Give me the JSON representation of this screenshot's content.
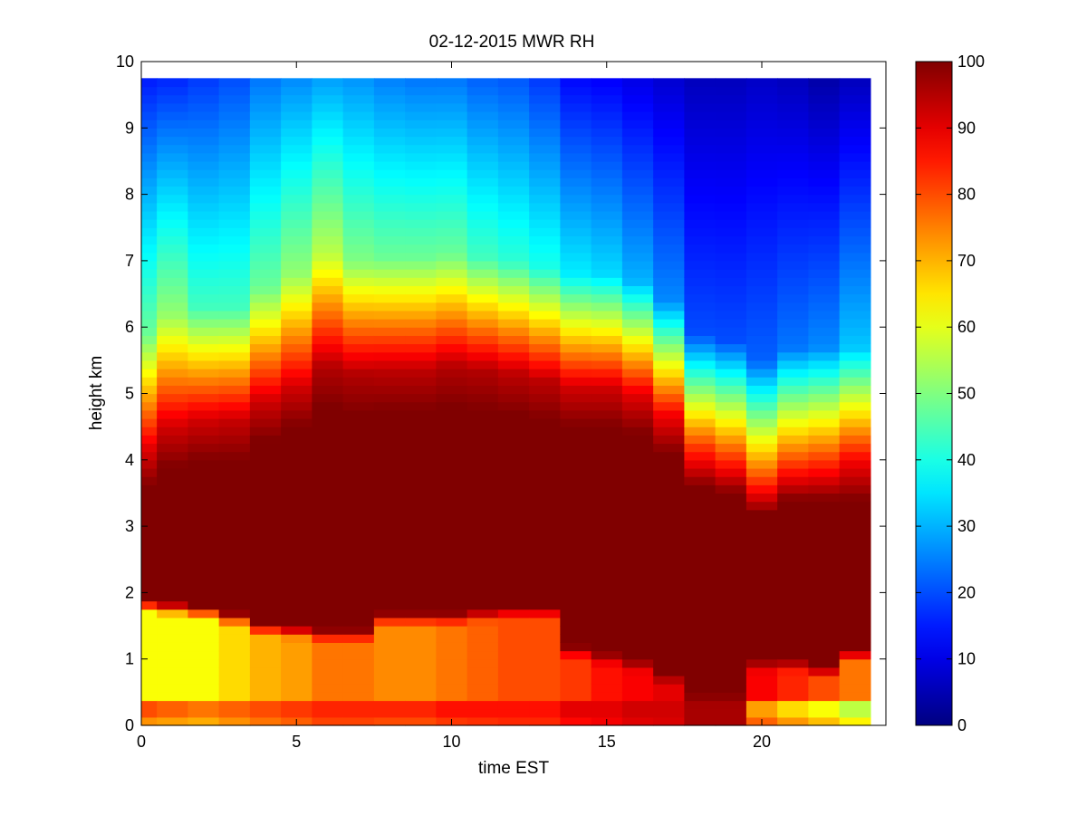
{
  "chart_data": {
    "type": "heatmap",
    "title": "02-12-2015 MWR RH",
    "xlabel": "time EST",
    "ylabel": "height km",
    "xlim": [
      0,
      24
    ],
    "ylim": [
      0,
      10
    ],
    "x_ticks": [
      0,
      5,
      10,
      15,
      20
    ],
    "y_ticks": [
      0,
      1,
      2,
      3,
      4,
      5,
      6,
      7,
      8,
      9,
      10
    ],
    "x_tick_labels": [
      "0",
      "5",
      "10",
      "15",
      "20"
    ],
    "y_tick_labels": [
      "0",
      "1",
      "2",
      "3",
      "4",
      "5",
      "6",
      "7",
      "8",
      "9",
      "10"
    ],
    "data_extent": {
      "x": [
        0,
        23.5
      ],
      "y": [
        0,
        9.75
      ]
    },
    "colormap": "jet",
    "colorbar": {
      "range": [
        0,
        100
      ],
      "ticks": [
        0,
        10,
        20,
        30,
        40,
        50,
        60,
        70,
        80,
        90,
        100
      ],
      "tick_labels": [
        "0",
        "10",
        "20",
        "30",
        "40",
        "50",
        "60",
        "70",
        "80",
        "90",
        "100"
      ]
    },
    "grid": false,
    "columns": [
      {
        "time_start": 0.0,
        "time_end": 0.5,
        "top_rh": 15,
        "upper_rh": 48,
        "mid_rh": 90,
        "sat_low": 3.6,
        "sat_high": 1.9,
        "low_rh": 62,
        "surface_rh": 80
      },
      {
        "time_start": 0.5,
        "time_end": 1.5,
        "top_rh": 16,
        "upper_rh": 52,
        "mid_rh": 92,
        "sat_low": 3.9,
        "sat_high": 1.85,
        "low_rh": 62,
        "surface_rh": 78
      },
      {
        "time_start": 1.5,
        "time_end": 2.5,
        "top_rh": 18,
        "upper_rh": 44,
        "mid_rh": 92,
        "sat_low": 4.0,
        "sat_high": 1.8,
        "low_rh": 62,
        "surface_rh": 76
      },
      {
        "time_start": 2.5,
        "time_end": 3.5,
        "top_rh": 20,
        "upper_rh": 44,
        "mid_rh": 93,
        "sat_low": 4.0,
        "sat_high": 1.7,
        "low_rh": 66,
        "surface_rh": 78
      },
      {
        "time_start": 3.5,
        "time_end": 4.5,
        "top_rh": 24,
        "upper_rh": 48,
        "mid_rh": 92,
        "sat_low": 4.3,
        "sat_high": 1.55,
        "low_rh": 70,
        "surface_rh": 80
      },
      {
        "time_start": 4.5,
        "time_end": 5.5,
        "top_rh": 26,
        "upper_rh": 52,
        "mid_rh": 92,
        "sat_low": 4.5,
        "sat_high": 1.5,
        "low_rh": 72,
        "surface_rh": 82
      },
      {
        "time_start": 5.5,
        "time_end": 6.5,
        "top_rh": 28,
        "upper_rh": 56,
        "mid_rh": 95,
        "sat_low": 4.8,
        "sat_high": 1.45,
        "low_rh": 76,
        "surface_rh": 84
      },
      {
        "time_start": 6.5,
        "time_end": 7.5,
        "top_rh": 27,
        "upper_rh": 50,
        "mid_rh": 95,
        "sat_low": 4.7,
        "sat_high": 1.45,
        "low_rh": 76,
        "surface_rh": 84
      },
      {
        "time_start": 7.5,
        "time_end": 8.5,
        "top_rh": 25,
        "upper_rh": 48,
        "mid_rh": 94,
        "sat_low": 4.75,
        "sat_high": 1.7,
        "low_rh": 74,
        "surface_rh": 84
      },
      {
        "time_start": 8.5,
        "time_end": 9.5,
        "top_rh": 24,
        "upper_rh": 48,
        "mid_rh": 94,
        "sat_low": 4.75,
        "sat_high": 1.7,
        "low_rh": 74,
        "surface_rh": 84
      },
      {
        "time_start": 9.5,
        "time_end": 10.5,
        "top_rh": 24,
        "upper_rh": 48,
        "mid_rh": 95,
        "sat_low": 4.8,
        "sat_high": 1.7,
        "low_rh": 76,
        "surface_rh": 86
      },
      {
        "time_start": 10.5,
        "time_end": 11.5,
        "top_rh": 22,
        "upper_rh": 44,
        "mid_rh": 95,
        "sat_low": 4.75,
        "sat_high": 1.75,
        "low_rh": 78,
        "surface_rh": 86
      },
      {
        "time_start": 11.5,
        "time_end": 12.5,
        "top_rh": 21,
        "upper_rh": 42,
        "mid_rh": 94,
        "sat_low": 4.7,
        "sat_high": 1.8,
        "low_rh": 80,
        "surface_rh": 86
      },
      {
        "time_start": 12.5,
        "time_end": 13.5,
        "top_rh": 18,
        "upper_rh": 40,
        "mid_rh": 94,
        "sat_low": 4.6,
        "sat_high": 1.8,
        "low_rh": 80,
        "surface_rh": 86
      },
      {
        "time_start": 13.5,
        "time_end": 14.5,
        "top_rh": 13,
        "upper_rh": 36,
        "mid_rh": 92,
        "sat_low": 4.5,
        "sat_high": 1.2,
        "low_rh": 82,
        "surface_rh": 90
      },
      {
        "time_start": 14.5,
        "time_end": 15.5,
        "top_rh": 12,
        "upper_rh": 34,
        "mid_rh": 92,
        "sat_low": 4.5,
        "sat_high": 1.1,
        "low_rh": 86,
        "surface_rh": 90
      },
      {
        "time_start": 15.5,
        "time_end": 16.5,
        "top_rh": 10,
        "upper_rh": 30,
        "mid_rh": 90,
        "sat_low": 4.4,
        "sat_high": 1.0,
        "low_rh": 88,
        "surface_rh": 92
      },
      {
        "time_start": 16.5,
        "time_end": 17.5,
        "top_rh": 8,
        "upper_rh": 26,
        "mid_rh": 88,
        "sat_low": 4.1,
        "sat_high": 0.8,
        "low_rh": 90,
        "surface_rh": 92
      },
      {
        "time_start": 17.5,
        "time_end": 18.5,
        "top_rh": 6,
        "upper_rh": 20,
        "mid_rh": 82,
        "sat_low": 3.6,
        "sat_high": 0.5,
        "low_rh": 96,
        "surface_rh": 96
      },
      {
        "time_start": 18.5,
        "time_end": 19.5,
        "top_rh": 6,
        "upper_rh": 20,
        "mid_rh": 80,
        "sat_low": 3.5,
        "sat_high": 0.5,
        "low_rh": 96,
        "surface_rh": 96
      },
      {
        "time_start": 19.5,
        "time_end": 20.5,
        "top_rh": 7,
        "upper_rh": 22,
        "mid_rh": 78,
        "sat_low": 3.2,
        "sat_high": 1.0,
        "low_rh": 88,
        "surface_rh": 72
      },
      {
        "time_start": 20.5,
        "time_end": 21.5,
        "top_rh": 6,
        "upper_rh": 24,
        "mid_rh": 80,
        "sat_low": 3.4,
        "sat_high": 1.0,
        "low_rh": 84,
        "surface_rh": 66
      },
      {
        "time_start": 21.5,
        "time_end": 22.5,
        "top_rh": 4,
        "upper_rh": 26,
        "mid_rh": 82,
        "sat_low": 3.4,
        "sat_high": 0.9,
        "low_rh": 80,
        "surface_rh": 62
      },
      {
        "time_start": 22.5,
        "time_end": 23.5,
        "top_rh": 6,
        "upper_rh": 32,
        "mid_rh": 88,
        "sat_low": 3.4,
        "sat_high": 1.15,
        "low_rh": 76,
        "surface_rh": 56
      }
    ]
  }
}
